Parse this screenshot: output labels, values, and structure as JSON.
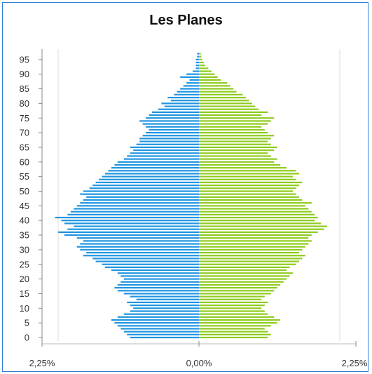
{
  "chart_data": {
    "type": "bar",
    "title": "Les Planes",
    "orientation": "horizontal-pyramid",
    "age_ticks": [
      "0",
      "5",
      "10",
      "15",
      "20",
      "25",
      "30",
      "35",
      "40",
      "45",
      "50",
      "55",
      "60",
      "65",
      "70",
      "75",
      "80",
      "85",
      "90",
      "95"
    ],
    "x_tick_labels": [
      "2,25%",
      "0,00%",
      "2,25%"
    ],
    "xlim": [
      -2.25,
      2.25
    ],
    "ages": [
      0,
      1,
      2,
      3,
      4,
      5,
      6,
      7,
      8,
      9,
      10,
      11,
      12,
      13,
      14,
      15,
      16,
      17,
      18,
      19,
      20,
      21,
      22,
      23,
      24,
      25,
      26,
      27,
      28,
      29,
      30,
      31,
      32,
      33,
      34,
      35,
      36,
      37,
      38,
      39,
      40,
      41,
      42,
      43,
      44,
      45,
      46,
      47,
      48,
      49,
      50,
      51,
      52,
      53,
      54,
      55,
      56,
      57,
      58,
      59,
      60,
      61,
      62,
      63,
      64,
      65,
      66,
      67,
      68,
      69,
      70,
      71,
      72,
      73,
      74,
      75,
      76,
      77,
      78,
      79,
      80,
      81,
      82,
      83,
      84,
      85,
      86,
      87,
      88,
      89,
      90,
      91,
      92,
      93,
      94,
      95,
      96,
      97
    ],
    "series": [
      {
        "side": "left",
        "color": "#1f95e0",
        "values": [
          1.1,
          1.15,
          1.2,
          1.25,
          1.3,
          1.35,
          1.4,
          1.3,
          1.2,
          1.1,
          1.05,
          1.1,
          1.15,
          1.0,
          1.1,
          1.2,
          1.3,
          1.35,
          1.3,
          1.25,
          1.2,
          1.25,
          1.3,
          1.4,
          1.5,
          1.55,
          1.65,
          1.7,
          1.85,
          1.8,
          1.9,
          1.95,
          1.9,
          1.85,
          1.95,
          2.15,
          2.25,
          2.1,
          2.0,
          2.15,
          2.2,
          2.3,
          2.1,
          2.05,
          2.0,
          1.95,
          1.9,
          1.85,
          1.8,
          1.9,
          1.85,
          1.75,
          1.7,
          1.65,
          1.6,
          1.55,
          1.5,
          1.45,
          1.4,
          1.35,
          1.3,
          1.2,
          1.15,
          1.1,
          1.05,
          1.1,
          1.0,
          0.95,
          0.95,
          0.9,
          0.85,
          0.8,
          0.85,
          0.9,
          0.95,
          0.85,
          0.8,
          0.75,
          0.65,
          0.55,
          0.6,
          0.45,
          0.5,
          0.4,
          0.35,
          0.3,
          0.25,
          0.2,
          0.15,
          0.3,
          0.2,
          0.1,
          0.05,
          0.05,
          0.05,
          0.05,
          0.03,
          0.03
        ]
      },
      {
        "side": "right",
        "color": "#8fcb1e",
        "values": [
          1.1,
          1.15,
          1.1,
          1.05,
          1.15,
          1.25,
          1.3,
          1.2,
          1.1,
          1.05,
          1.0,
          1.05,
          1.1,
          1.0,
          1.05,
          1.15,
          1.2,
          1.25,
          1.3,
          1.35,
          1.4,
          1.45,
          1.5,
          1.4,
          1.45,
          1.55,
          1.6,
          1.65,
          1.7,
          1.6,
          1.65,
          1.7,
          1.75,
          1.8,
          1.75,
          1.8,
          1.9,
          2.0,
          2.05,
          1.95,
          1.85,
          1.9,
          1.85,
          1.8,
          1.75,
          1.7,
          1.8,
          1.65,
          1.6,
          1.55,
          1.5,
          1.55,
          1.6,
          1.65,
          1.55,
          1.5,
          1.6,
          1.55,
          1.4,
          1.3,
          1.2,
          1.25,
          1.15,
          1.1,
          1.2,
          1.25,
          1.15,
          1.1,
          1.15,
          1.2,
          1.1,
          1.05,
          1.0,
          1.1,
          1.15,
          1.2,
          1.0,
          1.1,
          0.95,
          0.9,
          0.85,
          0.8,
          0.75,
          0.7,
          0.6,
          0.55,
          0.5,
          0.45,
          0.35,
          0.3,
          0.25,
          0.2,
          0.15,
          0.1,
          0.08,
          0.05,
          0.04,
          0.03
        ]
      }
    ],
    "grid": true
  }
}
